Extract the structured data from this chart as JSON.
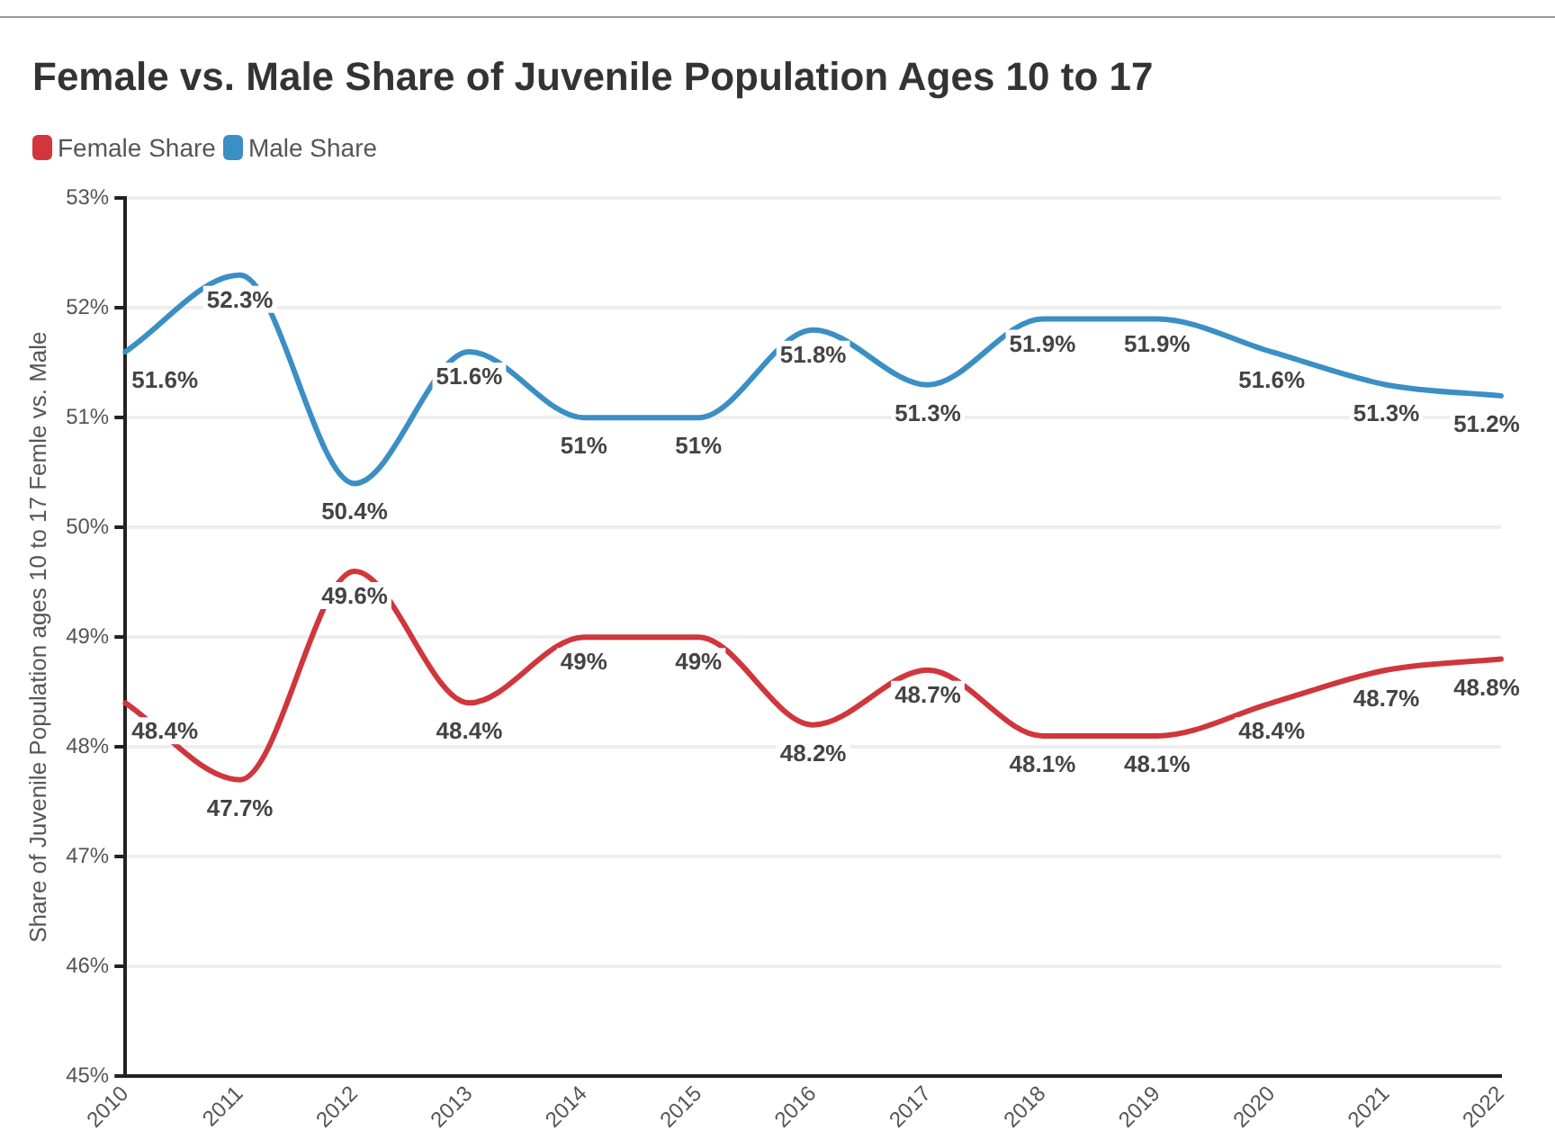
{
  "chart_data": {
    "type": "line",
    "title": "Female vs. Male Share of Juvenile Population Ages 10 to 17",
    "ylabel": "Share of Juvenile Population ages 10 to 17 Femle vs. Male",
    "categories": [
      "2010",
      "2011",
      "2012",
      "2013",
      "2014",
      "2015",
      "2016",
      "2017",
      "2018",
      "2019",
      "2020",
      "2021",
      "2022"
    ],
    "series": [
      {
        "name": "Female Share",
        "color": "#d0363b",
        "values": [
          48.4,
          47.7,
          49.6,
          48.4,
          49,
          49,
          48.2,
          48.7,
          48.1,
          48.1,
          48.4,
          48.7,
          48.8
        ],
        "value_labels": [
          "48.4%",
          "47.7%",
          "49.6%",
          "48.4%",
          "49%",
          "49%",
          "48.2%",
          "48.7%",
          "48.1%",
          "48.1%",
          "48.4%",
          "48.7%",
          "48.8%"
        ]
      },
      {
        "name": "Male Share",
        "color": "#3a8fc4",
        "values": [
          51.6,
          52.3,
          50.4,
          51.6,
          51,
          51,
          51.8,
          51.3,
          51.9,
          51.9,
          51.6,
          51.3,
          51.2
        ],
        "value_labels": [
          "51.6%",
          "52.3%",
          "50.4%",
          "51.6%",
          "51%",
          "51%",
          "51.8%",
          "51.3%",
          "51.9%",
          "51.9%",
          "51.6%",
          "51.3%",
          "51.2%"
        ]
      }
    ],
    "ylim": [
      45,
      53
    ],
    "yticks": [
      {
        "value": 45,
        "label": "45%"
      },
      {
        "value": 46,
        "label": "46%"
      },
      {
        "value": 47,
        "label": "47%"
      },
      {
        "value": 48,
        "label": "48%"
      },
      {
        "value": 49,
        "label": "49%"
      },
      {
        "value": 50,
        "label": "50%"
      },
      {
        "value": 51,
        "label": "51%"
      },
      {
        "value": 52,
        "label": "52%"
      },
      {
        "value": 53,
        "label": "53%"
      }
    ],
    "grid": "y",
    "legend": "top left",
    "marker": "none",
    "line_style": "solid"
  }
}
